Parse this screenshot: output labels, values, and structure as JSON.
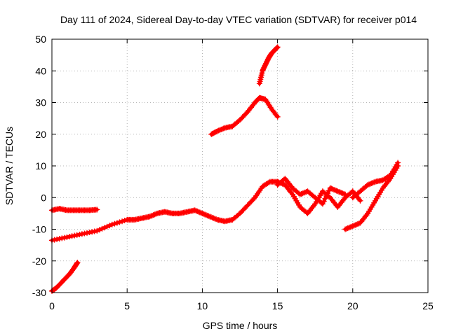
{
  "chart_data": {
    "type": "scatter",
    "title": "Day 111 of 2024, Sidereal Day-to-day VTEC variation (SDTVAR) for receiver p014",
    "xlabel": "GPS time / hours",
    "ylabel": "SDTVAR / TECUs",
    "xlim": [
      0,
      25
    ],
    "ylim": [
      -30,
      50
    ],
    "xticks": [
      0,
      5,
      10,
      15,
      20,
      25
    ],
    "yticks": [
      -30,
      -20,
      -10,
      0,
      10,
      20,
      30,
      40,
      50
    ],
    "grid": true,
    "legend": "none",
    "marker": "plus",
    "color": "#ff0000",
    "series": [
      {
        "name": "arc-1",
        "x": [
          0,
          0.3,
          0.6,
          0.9,
          1.2,
          1.5,
          1.7
        ],
        "y": [
          -29.5,
          -28.5,
          -27,
          -25.5,
          -24,
          -22,
          -20.5
        ]
      },
      {
        "name": "arc-2",
        "x": [
          0,
          0.5,
          1.0,
          1.5,
          2.0,
          2.5,
          3.0
        ],
        "y": [
          -4,
          -3.5,
          -4,
          -4,
          -4,
          -4,
          -3.8
        ]
      },
      {
        "name": "arc-3",
        "x": [
          0,
          1,
          2,
          3,
          4,
          5,
          5.5,
          6,
          6.5,
          7,
          7.5,
          8,
          8.5,
          9,
          9.5,
          10,
          10.5,
          11,
          11.5,
          12,
          12.5,
          13,
          13.5,
          14,
          14.5,
          15
        ],
        "y": [
          -13.5,
          -12.5,
          -11.5,
          -10.5,
          -8.5,
          -7,
          -7,
          -6.5,
          -6,
          -5,
          -4.5,
          -5,
          -5,
          -4.5,
          -4,
          -5,
          -6,
          -7,
          -7.5,
          -7,
          -5,
          -2.5,
          0,
          3.5,
          5,
          5
        ]
      },
      {
        "name": "arc-4",
        "x": [
          15,
          15.5,
          16,
          16.5,
          17,
          17.5,
          18,
          18.5,
          19,
          19.5,
          20,
          20.5
        ],
        "y": [
          5,
          4,
          1,
          -3,
          -5,
          -2,
          2,
          0,
          -3,
          0,
          2,
          -1
        ]
      },
      {
        "name": "arc-5",
        "x": [
          15,
          15.5,
          16,
          16.5,
          17,
          17.5,
          18,
          18.5,
          19,
          19.5
        ],
        "y": [
          4,
          6,
          3,
          1,
          2,
          0,
          -2,
          3,
          2,
          1
        ]
      },
      {
        "name": "arc-6",
        "x": [
          19.5,
          20,
          20.5,
          21,
          21.5,
          22,
          22.5,
          23
        ],
        "y": [
          -10,
          -9,
          -8,
          -5,
          -1,
          3,
          6,
          10
        ]
      },
      {
        "name": "arc-7",
        "x": [
          20,
          20.5,
          21,
          21.5,
          22,
          22.5,
          23
        ],
        "y": [
          0,
          2,
          4,
          5,
          5.5,
          7,
          11
        ]
      },
      {
        "name": "arc-8",
        "x": [
          10.6,
          11,
          11.5,
          12,
          12.5,
          13,
          13.5,
          13.8,
          14.2,
          14.6,
          15
        ],
        "y": [
          20,
          21,
          22,
          22.5,
          24.5,
          27,
          30,
          31.5,
          31,
          28,
          25.5
        ]
      },
      {
        "name": "arc-9",
        "x": [
          13.8,
          14,
          14.2,
          14.4,
          14.6,
          14.8,
          15
        ],
        "y": [
          36,
          40,
          42,
          44,
          45.5,
          46.5,
          47.5
        ]
      }
    ]
  }
}
